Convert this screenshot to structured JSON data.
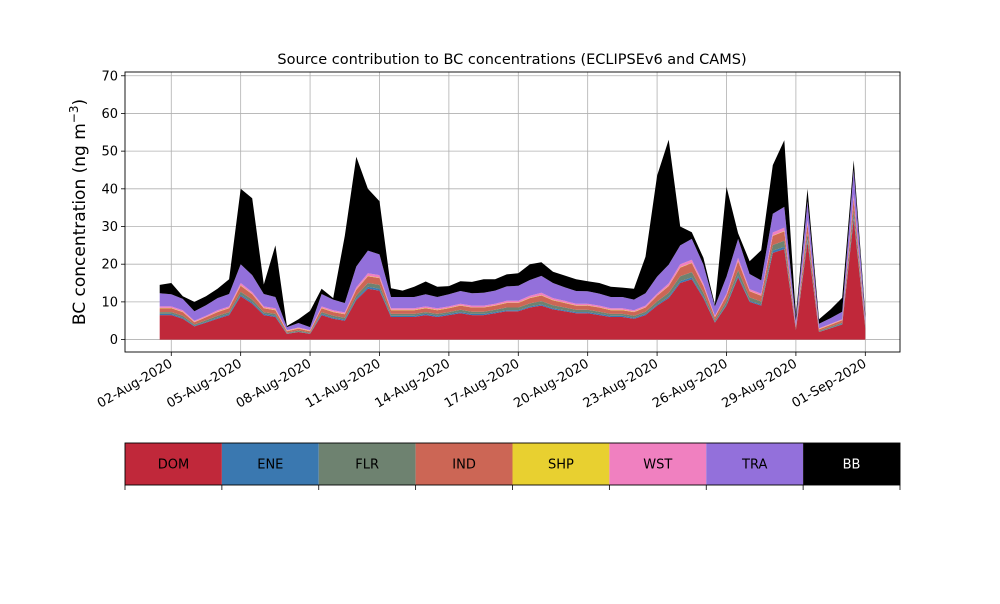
{
  "chart_data": {
    "type": "area",
    "stacked": true,
    "title": "Source contribution to BC concentrations (ECLIPSEv6 and CAMS)",
    "xlabel": "",
    "ylabel": "BC concentration (ng m",
    "ylabel_superscript": "−3",
    "ylabel_close": ")",
    "ylim": [
      -3.3,
      71.0
    ],
    "yticks": [
      0,
      10,
      20,
      30,
      40,
      50,
      60,
      70
    ],
    "xlim": [
      "2020-07-31 00:00",
      "2020-09-02 12:00"
    ],
    "xticks": [
      {
        "date": "2020-08-02",
        "label": "02-Aug-2020"
      },
      {
        "date": "2020-08-05",
        "label": "05-Aug-2020"
      },
      {
        "date": "2020-08-08",
        "label": "08-Aug-2020"
      },
      {
        "date": "2020-08-11",
        "label": "11-Aug-2020"
      },
      {
        "date": "2020-08-14",
        "label": "14-Aug-2020"
      },
      {
        "date": "2020-08-17",
        "label": "17-Aug-2020"
      },
      {
        "date": "2020-08-20",
        "label": "20-Aug-2020"
      },
      {
        "date": "2020-08-23",
        "label": "23-Aug-2020"
      },
      {
        "date": "2020-08-26",
        "label": "26-Aug-2020"
      },
      {
        "date": "2020-08-29",
        "label": "29-Aug-2020"
      },
      {
        "date": "2020-09-01",
        "label": "01-Sep-2020"
      }
    ],
    "grid": true,
    "legend_placement": "bottom",
    "x": [
      "2020-08-01 12:00",
      "2020-08-02 00:00",
      "2020-08-02 12:00",
      "2020-08-03 00:00",
      "2020-08-03 12:00",
      "2020-08-04 00:00",
      "2020-08-04 12:00",
      "2020-08-05 00:00",
      "2020-08-05 12:00",
      "2020-08-06 00:00",
      "2020-08-06 12:00",
      "2020-08-07 00:00",
      "2020-08-07 12:00",
      "2020-08-08 00:00",
      "2020-08-08 12:00",
      "2020-08-09 00:00",
      "2020-08-09 12:00",
      "2020-08-10 00:00",
      "2020-08-10 12:00",
      "2020-08-11 00:00",
      "2020-08-11 12:00",
      "2020-08-12 00:00",
      "2020-08-12 12:00",
      "2020-08-13 00:00",
      "2020-08-13 12:00",
      "2020-08-14 00:00",
      "2020-08-14 12:00",
      "2020-08-15 00:00",
      "2020-08-15 12:00",
      "2020-08-16 00:00",
      "2020-08-16 12:00",
      "2020-08-17 00:00",
      "2020-08-17 12:00",
      "2020-08-18 00:00",
      "2020-08-18 12:00",
      "2020-08-19 00:00",
      "2020-08-19 12:00",
      "2020-08-20 00:00",
      "2020-08-20 12:00",
      "2020-08-21 00:00",
      "2020-08-21 12:00",
      "2020-08-22 00:00",
      "2020-08-22 12:00",
      "2020-08-23 00:00",
      "2020-08-23 12:00",
      "2020-08-24 00:00",
      "2020-08-24 12:00",
      "2020-08-25 00:00",
      "2020-08-25 12:00",
      "2020-08-26 00:00",
      "2020-08-26 12:00",
      "2020-08-27 00:00",
      "2020-08-27 12:00",
      "2020-08-28 00:00",
      "2020-08-28 12:00",
      "2020-08-29 00:00",
      "2020-08-29 12:00",
      "2020-08-30 00:00",
      "2020-08-30 12:00",
      "2020-08-31 00:00",
      "2020-08-31 12:00",
      "2020-09-01 00:00"
    ],
    "series": [
      {
        "name": "DOM",
        "color": "#c0283a",
        "values": [
          6.5,
          6.5,
          5.5,
          3.5,
          4.5,
          5.5,
          6.5,
          11.5,
          9.5,
          6.5,
          6.0,
          1.5,
          2.0,
          1.5,
          6.5,
          5.5,
          5.0,
          10.5,
          13.5,
          13.0,
          6.0,
          6.0,
          6.0,
          6.5,
          6.0,
          6.5,
          7.0,
          6.5,
          6.5,
          7.0,
          7.5,
          7.5,
          8.5,
          9.0,
          8.0,
          7.5,
          7.0,
          7.0,
          6.5,
          6.0,
          6.0,
          5.5,
          6.5,
          9.0,
          11.0,
          15.0,
          16.0,
          11.0,
          4.5,
          9.0,
          16.5,
          10.0,
          9.0,
          23.0,
          24.0,
          2.5,
          26.0,
          2.0,
          3.0,
          4.0,
          32.0,
          3.0
        ]
      },
      {
        "name": "ENE",
        "color": "#3a78b0",
        "values": [
          0.3,
          0.3,
          0.3,
          0.2,
          0.2,
          0.3,
          0.3,
          0.4,
          0.4,
          0.3,
          0.3,
          0.1,
          0.1,
          0.1,
          0.3,
          0.3,
          0.3,
          0.4,
          0.5,
          0.5,
          0.3,
          0.3,
          0.3,
          0.3,
          0.3,
          0.3,
          0.3,
          0.3,
          0.3,
          0.3,
          0.3,
          0.3,
          0.3,
          0.3,
          0.3,
          0.3,
          0.3,
          0.3,
          0.3,
          0.3,
          0.3,
          0.3,
          0.3,
          0.3,
          0.4,
          0.5,
          0.5,
          0.4,
          0.2,
          0.3,
          0.5,
          0.3,
          0.3,
          0.6,
          0.6,
          0.1,
          0.6,
          0.1,
          0.1,
          0.2,
          0.8,
          0.2
        ]
      },
      {
        "name": "FLR",
        "color": "#6e8270",
        "values": [
          0.5,
          0.5,
          0.5,
          0.3,
          0.4,
          0.5,
          0.5,
          0.8,
          0.7,
          0.5,
          0.5,
          0.2,
          0.3,
          0.2,
          0.5,
          0.5,
          0.5,
          0.8,
          1.0,
          1.0,
          0.5,
          0.5,
          0.5,
          0.5,
          0.5,
          0.5,
          0.6,
          0.6,
          0.6,
          0.6,
          0.7,
          0.7,
          0.8,
          0.9,
          0.8,
          0.7,
          0.6,
          0.6,
          0.6,
          0.5,
          0.5,
          0.5,
          0.6,
          0.8,
          1.0,
          1.3,
          1.4,
          1.0,
          0.4,
          0.8,
          1.4,
          0.9,
          0.8,
          1.5,
          1.6,
          0.2,
          1.6,
          0.2,
          0.3,
          0.3,
          1.8,
          0.3
        ]
      },
      {
        "name": "IND",
        "color": "#cc6655",
        "values": [
          1.0,
          1.0,
          1.0,
          0.6,
          0.8,
          1.0,
          1.0,
          1.6,
          1.4,
          1.0,
          1.0,
          0.4,
          0.5,
          0.4,
          1.0,
          1.0,
          0.9,
          1.5,
          1.8,
          1.8,
          1.0,
          1.0,
          1.0,
          1.0,
          1.0,
          1.0,
          1.1,
          1.1,
          1.1,
          1.1,
          1.2,
          1.2,
          1.4,
          1.5,
          1.3,
          1.2,
          1.1,
          1.1,
          1.1,
          1.0,
          1.0,
          1.0,
          1.1,
          1.5,
          1.8,
          2.3,
          2.4,
          1.8,
          0.8,
          1.5,
          2.4,
          1.6,
          1.5,
          2.4,
          2.5,
          0.4,
          2.5,
          0.4,
          0.5,
          0.6,
          2.8,
          0.5
        ]
      },
      {
        "name": "SHP",
        "color": "#e8d030",
        "values": [
          0.1,
          0.1,
          0.1,
          0.1,
          0.1,
          0.1,
          0.1,
          0.1,
          0.1,
          0.1,
          0.1,
          0.1,
          0.1,
          0.1,
          0.1,
          0.1,
          0.1,
          0.1,
          0.1,
          0.1,
          0.1,
          0.1,
          0.1,
          0.1,
          0.1,
          0.1,
          0.1,
          0.1,
          0.1,
          0.1,
          0.1,
          0.1,
          0.1,
          0.1,
          0.1,
          0.1,
          0.1,
          0.1,
          0.1,
          0.1,
          0.1,
          0.1,
          0.1,
          0.1,
          0.1,
          0.1,
          0.1,
          0.1,
          0.1,
          0.1,
          0.1,
          0.1,
          0.1,
          0.1,
          0.1,
          0.1,
          0.1,
          0.1,
          0.1,
          0.1,
          0.1,
          0.1
        ]
      },
      {
        "name": "WST",
        "color": "#f080c0",
        "values": [
          0.4,
          0.4,
          0.4,
          0.3,
          0.3,
          0.4,
          0.4,
          0.6,
          0.5,
          0.4,
          0.4,
          0.2,
          0.2,
          0.2,
          0.4,
          0.4,
          0.4,
          0.6,
          0.7,
          0.7,
          0.4,
          0.4,
          0.4,
          0.4,
          0.4,
          0.4,
          0.4,
          0.4,
          0.4,
          0.4,
          0.5,
          0.5,
          0.5,
          0.6,
          0.5,
          0.5,
          0.4,
          0.4,
          0.4,
          0.4,
          0.4,
          0.4,
          0.4,
          0.5,
          0.6,
          0.8,
          0.8,
          0.6,
          0.3,
          0.5,
          0.8,
          0.5,
          0.5,
          0.8,
          0.9,
          0.2,
          0.9,
          0.2,
          0.2,
          0.2,
          1.0,
          0.2
        ]
      },
      {
        "name": "TRA",
        "color": "#9370db",
        "values": [
          3.5,
          3.2,
          3.0,
          2.5,
          2.8,
          3.2,
          3.3,
          5.0,
          4.5,
          3.3,
          3.0,
          0.8,
          1.2,
          0.8,
          3.3,
          2.8,
          2.5,
          5.5,
          6.0,
          5.5,
          3.0,
          3.0,
          3.0,
          3.2,
          3.0,
          3.2,
          3.4,
          3.3,
          3.4,
          3.5,
          3.8,
          4.0,
          4.2,
          4.5,
          4.0,
          3.6,
          3.4,
          3.3,
          3.2,
          3.0,
          3.0,
          2.8,
          3.3,
          4.5,
          5.0,
          5.0,
          5.5,
          5.0,
          2.5,
          4.5,
          5.0,
          4.0,
          3.5,
          5.0,
          5.5,
          1.5,
          5.0,
          1.2,
          1.5,
          2.0,
          6.5,
          1.5
        ]
      },
      {
        "name": "BB",
        "color": "#000000",
        "values": [
          2.2,
          3.0,
          0.7,
          2.5,
          2.4,
          2.5,
          3.9,
          20.0,
          20.4,
          2.5,
          13.7,
          0.3,
          1.0,
          4.3,
          1.4,
          0.4,
          17.8,
          29.1,
          16.4,
          14.1,
          2.3,
          1.7,
          2.7,
          3.4,
          2.7,
          2.2,
          2.6,
          3.0,
          3.6,
          3.0,
          3.2,
          3.3,
          4.2,
          3.6,
          3.0,
          3.1,
          3.1,
          2.7,
          2.8,
          2.7,
          2.5,
          2.9,
          9.7,
          26.8,
          33.1,
          5.0,
          1.8,
          1.8,
          0.5,
          23.8,
          1.5,
          3.4,
          8.0,
          12.9,
          17.7,
          1.3,
          3.3,
          1.2,
          2.3,
          3.7,
          2.6,
          1.0
        ]
      }
    ]
  }
}
